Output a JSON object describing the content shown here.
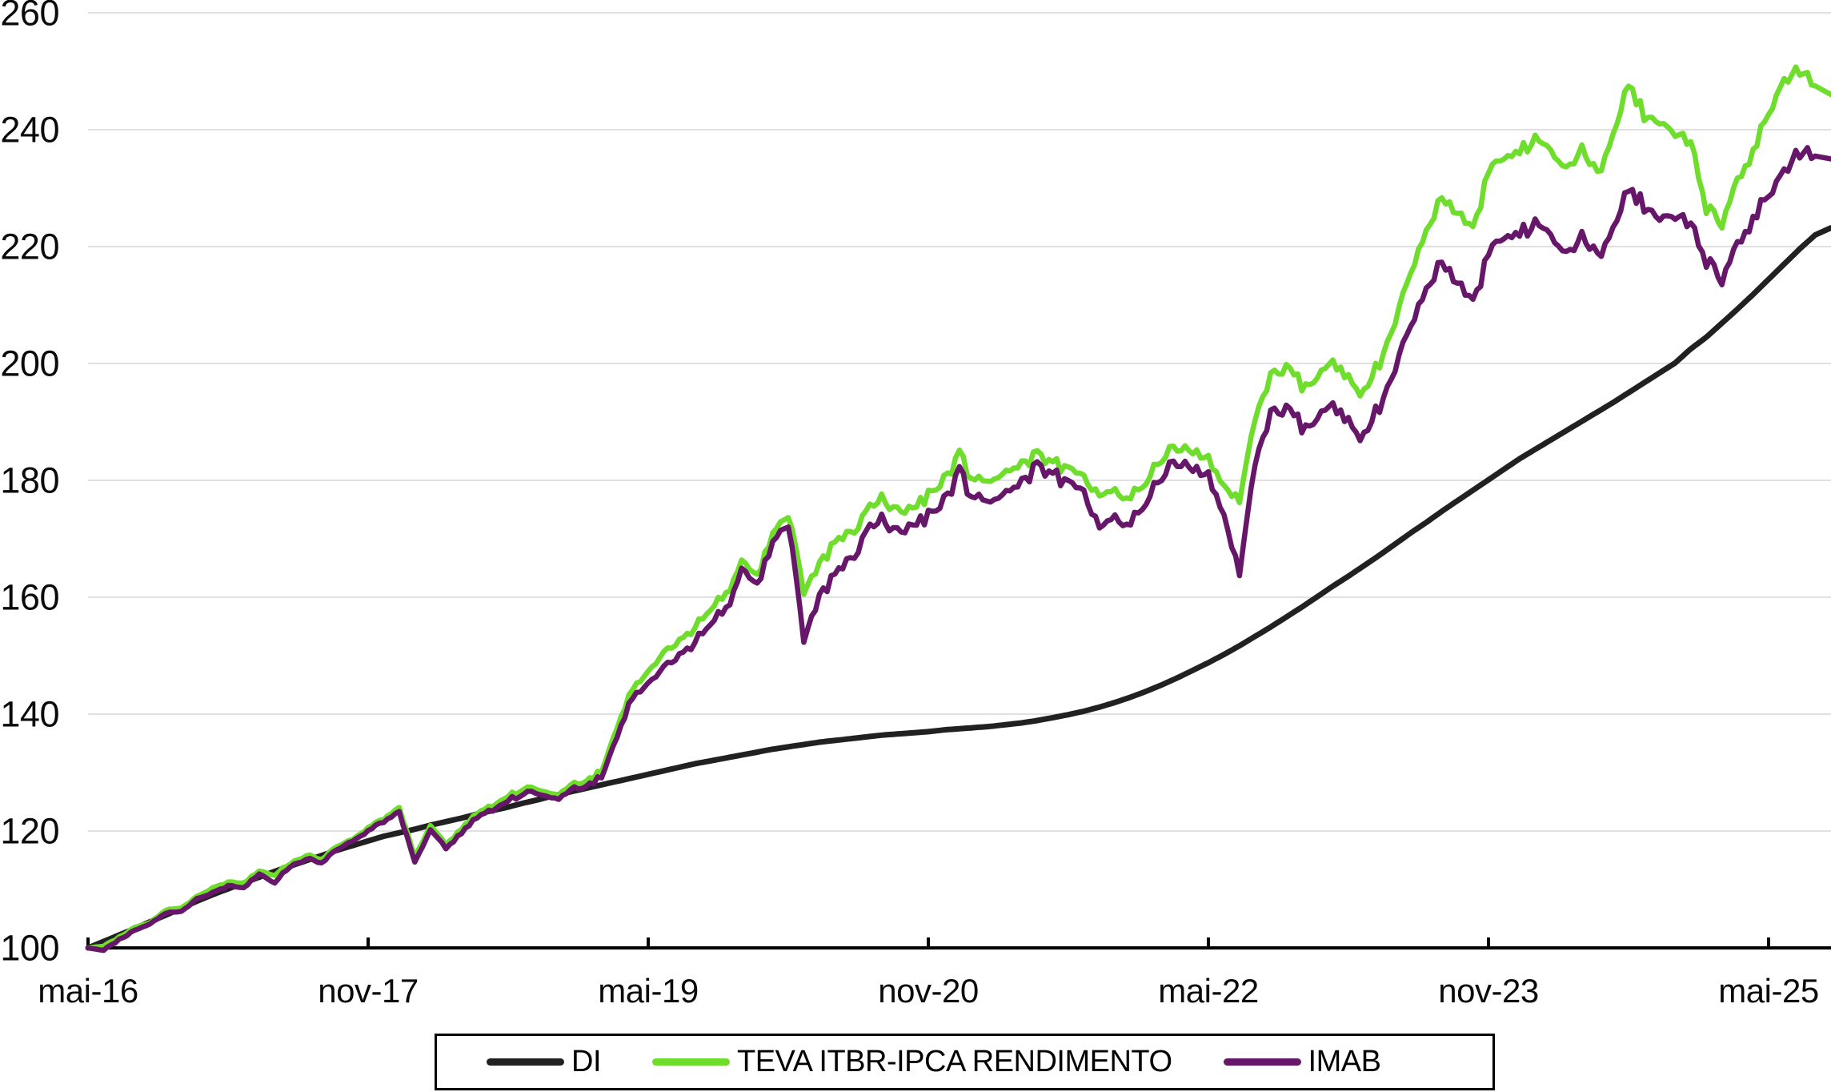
{
  "chart_data": {
    "type": "line",
    "title": "",
    "xlabel": "",
    "ylabel": "",
    "grid": "horizontal",
    "background": "#ffffff",
    "gridline_color": "#e0e0e0",
    "axis_color": "#000000",
    "ylim": [
      100,
      260
    ],
    "y_ticks": [
      100,
      120,
      140,
      160,
      180,
      200,
      220,
      240,
      260
    ],
    "x_unit": "month",
    "x_start_label": "mai-16",
    "x_total_months": 111,
    "x_tick_months": [
      0,
      18,
      36,
      54,
      72,
      90,
      108
    ],
    "x_tick_labels": [
      "mai-16",
      "nov-17",
      "mai-19",
      "nov-20",
      "mai-22",
      "nov-23",
      "mai-25"
    ],
    "legend_position": "bottom",
    "series": [
      {
        "name": "DI",
        "color": "#212121",
        "jitter": false,
        "values": [
          100.0,
          101.1,
          102.2,
          103.3,
          104.5,
          105.6,
          106.8,
          108.0,
          109.1,
          110.1,
          111.1,
          112.1,
          113.1,
          114.0,
          114.9,
          115.8,
          116.7,
          117.5,
          118.3,
          119.1,
          119.7,
          120.3,
          121.0,
          121.6,
          122.2,
          122.9,
          123.5,
          124.1,
          124.8,
          125.4,
          126.1,
          126.7,
          127.3,
          127.9,
          128.5,
          129.1,
          129.7,
          130.3,
          130.9,
          131.5,
          132.0,
          132.5,
          133.0,
          133.5,
          134.0,
          134.4,
          134.8,
          135.2,
          135.5,
          135.8,
          136.1,
          136.4,
          136.6,
          136.8,
          137.0,
          137.3,
          137.5,
          137.7,
          137.9,
          138.2,
          138.5,
          138.9,
          139.4,
          139.9,
          140.5,
          141.2,
          142.0,
          142.9,
          143.9,
          145.0,
          146.2,
          147.5,
          148.8,
          150.2,
          151.7,
          153.3,
          154.9,
          156.6,
          158.3,
          160.1,
          161.9,
          163.6,
          165.4,
          167.2,
          169.1,
          171.0,
          172.8,
          174.7,
          176.5,
          178.3,
          180.1,
          181.9,
          183.7,
          185.3,
          186.9,
          188.5,
          190.1,
          191.7,
          193.3,
          195.0,
          196.7,
          198.4,
          200.1,
          202.5,
          204.5,
          206.9,
          209.3,
          211.8,
          214.4,
          217.0,
          219.6,
          222.0
        ]
      },
      {
        "name": "TEVA ITBR-IPCA RENDIMENTO",
        "color": "#6fdd2c",
        "jitter": true,
        "values": [
          100.0,
          100.3,
          101.8,
          103.5,
          104.4,
          106.5,
          106.8,
          108.8,
          110.3,
          111.3,
          111.0,
          113.3,
          112.5,
          114.5,
          115.8,
          115.2,
          117.5,
          118.6,
          120.8,
          122.0,
          124.0,
          115.5,
          121.0,
          117.8,
          120.5,
          123.0,
          124.3,
          125.8,
          127.3,
          127.0,
          126.0,
          127.8,
          128.3,
          130.3,
          138.0,
          144.0,
          147.5,
          150.5,
          152.5,
          155.0,
          157.5,
          161.0,
          165.5,
          164.0,
          171.0,
          174.5,
          161.0,
          166.0,
          169.0,
          171.0,
          174.5,
          177.0,
          176.0,
          174.5,
          177.5,
          181.0,
          184.0,
          180.5,
          180.0,
          181.5,
          183.5,
          184.5,
          183.0,
          181.0,
          181.5,
          177.0,
          179.0,
          176.5,
          179.5,
          184.0,
          186.0,
          184.5,
          183.0,
          179.0,
          176.5,
          191.5,
          197.5,
          199.5,
          196.5,
          197.5,
          199.5,
          197.0,
          195.0,
          200.0,
          207.5,
          216.0,
          222.5,
          228.5,
          225.5,
          223.0,
          233.0,
          236.0,
          236.5,
          238.0,
          236.5,
          233.5,
          236.0,
          232.5,
          239.0,
          247.5,
          242.5,
          241.0,
          240.0,
          237.5,
          227.0,
          224.5,
          231.0,
          236.5,
          243.0,
          248.5,
          250.5,
          247.5
        ]
      },
      {
        "name": "IMAB",
        "color": "#661769",
        "jitter": true,
        "values": [
          100.0,
          99.6,
          101.4,
          103.0,
          104.2,
          106.0,
          106.2,
          108.4,
          109.5,
          110.7,
          110.2,
          112.8,
          111.2,
          114.0,
          115.2,
          114.6,
          117.0,
          118.3,
          120.3,
          121.5,
          123.3,
          114.6,
          120.3,
          117.2,
          119.8,
          122.3,
          123.6,
          125.0,
          126.5,
          126.3,
          125.3,
          127.0,
          127.4,
          129.3,
          136.5,
          142.5,
          145.5,
          148.0,
          150.0,
          152.5,
          155.0,
          158.5,
          164.0,
          162.5,
          169.5,
          173.0,
          152.8,
          160.5,
          163.5,
          166.5,
          171.0,
          173.5,
          172.5,
          171.5,
          174.0,
          177.5,
          181.0,
          177.5,
          176.5,
          178.0,
          180.5,
          182.5,
          181.0,
          178.5,
          179.0,
          171.5,
          174.5,
          172.0,
          176.0,
          181.0,
          183.5,
          181.5,
          180.0,
          174.0,
          164.0,
          184.0,
          191.0,
          192.5,
          189.5,
          190.5,
          192.0,
          189.5,
          187.5,
          192.5,
          199.5,
          207.0,
          212.5,
          217.5,
          213.5,
          210.5,
          219.0,
          222.5,
          222.5,
          223.5,
          222.0,
          219.0,
          221.0,
          218.5,
          223.0,
          229.5,
          227.0,
          224.5,
          226.0,
          223.5,
          218.0,
          215.0,
          220.0,
          225.0,
          229.0,
          233.0,
          236.5,
          235.5
        ]
      }
    ]
  }
}
